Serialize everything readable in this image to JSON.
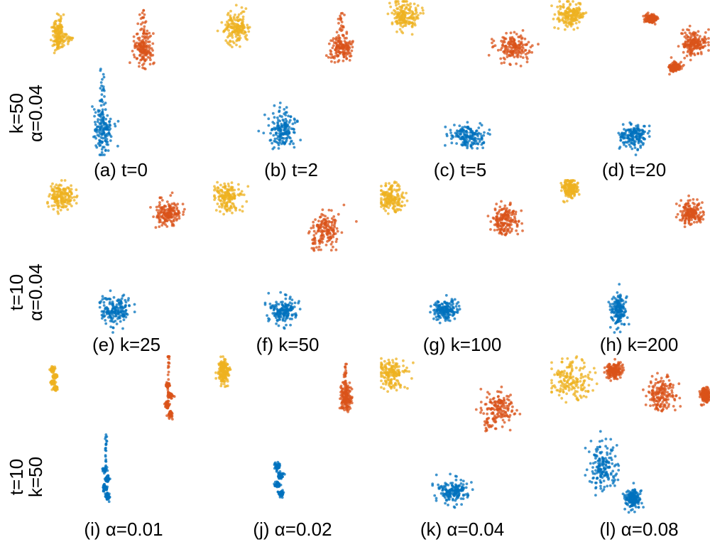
{
  "colors": {
    "yellow": "#EDB120",
    "orange": "#D95319",
    "blue": "#0072BD"
  },
  "chart_data": {
    "type": "scatter",
    "rows": [
      {
        "row_label": [
          "k=50",
          "α=0.04"
        ],
        "panels": [
          {
            "caption": "(a) t=0",
            "clusters": [
              {
                "color": "yellow",
                "cx": 0.08,
                "cy": 0.22,
                "rx": 0.05,
                "ry": 0.13,
                "shape": "tail-right"
              },
              {
                "color": "orange",
                "cx": 0.65,
                "cy": 0.32,
                "rx": 0.08,
                "ry": 0.12,
                "shape": "tail-up"
              },
              {
                "color": "blue",
                "cx": 0.38,
                "cy": 0.82,
                "rx": 0.08,
                "ry": 0.18,
                "shape": "tail-up"
              }
            ]
          },
          {
            "caption": "(b) t=2",
            "clusters": [
              {
                "color": "yellow",
                "cx": 0.15,
                "cy": 0.18,
                "rx": 0.1,
                "ry": 0.12,
                "shape": "blob"
              },
              {
                "color": "orange",
                "cx": 0.82,
                "cy": 0.3,
                "rx": 0.1,
                "ry": 0.1,
                "shape": "tail-up"
              },
              {
                "color": "blue",
                "cx": 0.45,
                "cy": 0.83,
                "rx": 0.1,
                "ry": 0.13,
                "shape": "blob"
              }
            ]
          },
          {
            "caption": "(c) t=5",
            "clusters": [
              {
                "color": "yellow",
                "cx": 0.15,
                "cy": 0.1,
                "rx": 0.1,
                "ry": 0.11,
                "shape": "blob"
              },
              {
                "color": "orange",
                "cx": 0.82,
                "cy": 0.3,
                "rx": 0.12,
                "ry": 0.1,
                "shape": "blob"
              },
              {
                "color": "blue",
                "cx": 0.53,
                "cy": 0.87,
                "rx": 0.12,
                "ry": 0.09,
                "shape": "blob"
              }
            ]
          },
          {
            "caption": "(d) t=20",
            "clusters": [
              {
                "color": "yellow",
                "cx": 0.13,
                "cy": 0.1,
                "rx": 0.1,
                "ry": 0.1,
                "shape": "blob"
              },
              {
                "color": "orange",
                "cx": 0.9,
                "cy": 0.28,
                "rx": 0.1,
                "ry": 0.1,
                "shape": "blob"
              },
              {
                "color": "orange",
                "cx": 0.63,
                "cy": 0.12,
                "rx": 0.04,
                "ry": 0.03,
                "shape": "blob"
              },
              {
                "color": "orange",
                "cx": 0.78,
                "cy": 0.43,
                "rx": 0.04,
                "ry": 0.03,
                "shape": "blob"
              },
              {
                "color": "blue",
                "cx": 0.52,
                "cy": 0.87,
                "rx": 0.1,
                "ry": 0.09,
                "shape": "blob"
              }
            ]
          }
        ]
      },
      {
        "row_label": [
          "t=10",
          "α=0.04"
        ],
        "panels": [
          {
            "caption": "(e) k=25",
            "clusters": [
              {
                "color": "yellow",
                "cx": 0.1,
                "cy": 0.12,
                "rx": 0.1,
                "ry": 0.1,
                "shape": "blob"
              },
              {
                "color": "orange",
                "cx": 0.82,
                "cy": 0.22,
                "rx": 0.1,
                "ry": 0.1,
                "shape": "blob"
              },
              {
                "color": "blue",
                "cx": 0.47,
                "cy": 0.84,
                "rx": 0.13,
                "ry": 0.11,
                "shape": "blob"
              }
            ]
          },
          {
            "caption": "(f) k=50",
            "clusters": [
              {
                "color": "yellow",
                "cx": 0.09,
                "cy": 0.12,
                "rx": 0.1,
                "ry": 0.1,
                "shape": "blob"
              },
              {
                "color": "orange",
                "cx": 0.72,
                "cy": 0.32,
                "rx": 0.11,
                "ry": 0.12,
                "shape": "tail-down"
              },
              {
                "color": "blue",
                "cx": 0.45,
                "cy": 0.85,
                "rx": 0.1,
                "ry": 0.1,
                "shape": "blob"
              }
            ]
          },
          {
            "caption": "(g) k=100",
            "clusters": [
              {
                "color": "yellow",
                "cx": 0.07,
                "cy": 0.12,
                "rx": 0.09,
                "ry": 0.1,
                "shape": "blob"
              },
              {
                "color": "orange",
                "cx": 0.77,
                "cy": 0.27,
                "rx": 0.1,
                "ry": 0.11,
                "shape": "blob"
              },
              {
                "color": "blue",
                "cx": 0.4,
                "cy": 0.85,
                "rx": 0.09,
                "ry": 0.08,
                "shape": "blob"
              }
            ]
          },
          {
            "caption": "(h) k=200",
            "clusters": [
              {
                "color": "yellow",
                "cx": 0.12,
                "cy": 0.06,
                "rx": 0.06,
                "ry": 0.07,
                "shape": "blob"
              },
              {
                "color": "orange",
                "cx": 0.88,
                "cy": 0.22,
                "rx": 0.09,
                "ry": 0.08,
                "shape": "blob"
              },
              {
                "color": "blue",
                "cx": 0.43,
                "cy": 0.85,
                "rx": 0.06,
                "ry": 0.12,
                "shape": "blob"
              }
            ]
          }
        ]
      },
      {
        "row_label": [
          "t=10",
          "k=50"
        ],
        "panels": [
          {
            "caption": "(i) α=0.01",
            "clusters": [
              {
                "color": "yellow",
                "cx": 0.05,
                "cy": 0.15,
                "rx": 0.03,
                "ry": 0.1,
                "shape": "dots"
              },
              {
                "color": "orange",
                "cx": 0.82,
                "cy": 0.28,
                "rx": 0.03,
                "ry": 0.15,
                "shape": "dots-tail-up"
              },
              {
                "color": "blue",
                "cx": 0.4,
                "cy": 0.8,
                "rx": 0.03,
                "ry": 0.14,
                "shape": "dots-tail-up"
              }
            ]
          },
          {
            "caption": "(j) α=0.02",
            "clusters": [
              {
                "color": "yellow",
                "cx": 0.07,
                "cy": 0.1,
                "rx": 0.04,
                "ry": 0.09,
                "shape": "blob"
              },
              {
                "color": "orange",
                "cx": 0.85,
                "cy": 0.27,
                "rx": 0.04,
                "ry": 0.1,
                "shape": "tail-up"
              },
              {
                "color": "blue",
                "cx": 0.42,
                "cy": 0.78,
                "rx": 0.04,
                "ry": 0.14,
                "shape": "dots"
              }
            ]
          },
          {
            "caption": "(k) α=0.04",
            "clusters": [
              {
                "color": "yellow",
                "cx": 0.07,
                "cy": 0.12,
                "rx": 0.1,
                "ry": 0.1,
                "shape": "blob"
              },
              {
                "color": "orange",
                "cx": 0.73,
                "cy": 0.32,
                "rx": 0.11,
                "ry": 0.13,
                "shape": "tail-down"
              },
              {
                "color": "blue",
                "cx": 0.45,
                "cy": 0.85,
                "rx": 0.11,
                "ry": 0.09,
                "shape": "blob"
              }
            ]
          },
          {
            "caption": "(l) α=0.08",
            "clusters": [
              {
                "color": "yellow",
                "cx": 0.13,
                "cy": 0.15,
                "rx": 0.15,
                "ry": 0.14,
                "shape": "blob"
              },
              {
                "color": "orange",
                "cx": 0.7,
                "cy": 0.25,
                "rx": 0.11,
                "ry": 0.12,
                "shape": "blob"
              },
              {
                "color": "orange",
                "cx": 0.4,
                "cy": 0.1,
                "rx": 0.06,
                "ry": 0.06,
                "shape": "blob"
              },
              {
                "color": "orange",
                "cx": 0.97,
                "cy": 0.25,
                "rx": 0.04,
                "ry": 0.05,
                "shape": "blob"
              },
              {
                "color": "blue",
                "cx": 0.33,
                "cy": 0.7,
                "rx": 0.11,
                "ry": 0.16,
                "shape": "blob"
              },
              {
                "color": "blue",
                "cx": 0.52,
                "cy": 0.9,
                "rx": 0.06,
                "ry": 0.07,
                "shape": "blob"
              }
            ]
          }
        ]
      }
    ]
  }
}
